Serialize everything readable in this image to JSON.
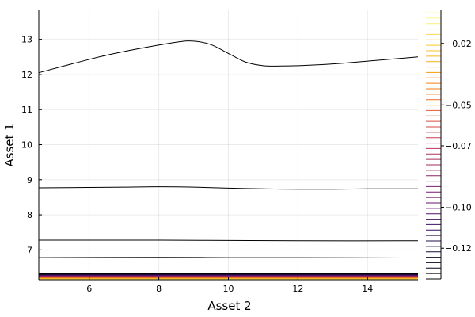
{
  "chart_data": {
    "type": "contour",
    "title": "",
    "xlabel": "Asset 2",
    "ylabel": "Asset 1",
    "xlim": [
      4.55,
      15.45
    ],
    "ylim": [
      6.15,
      13.85
    ],
    "x_ticks": [
      6,
      8,
      10,
      12,
      14
    ],
    "y_ticks": [
      7,
      8,
      9,
      10,
      11,
      12,
      13
    ],
    "grid": true,
    "legend": "none",
    "colorbar": {
      "colormap": "inferno",
      "ticks": [
        -0.02,
        -0.05,
        -0.07,
        -0.1,
        -0.12
      ],
      "tick_labels": [
        "−0.02",
        "−0.05",
        "−0.07",
        "−0.10",
        "−0.12"
      ],
      "range": [
        -0.135,
        -0.005
      ],
      "levels": 50
    },
    "contours": [
      {
        "color": "#000004",
        "points": [
          [
            4.55,
            12.05
          ],
          [
            5.5,
            12.3
          ],
          [
            6.5,
            12.55
          ],
          [
            7.5,
            12.75
          ],
          [
            8.5,
            12.92
          ],
          [
            9.0,
            12.95
          ],
          [
            9.5,
            12.85
          ],
          [
            10.0,
            12.6
          ],
          [
            10.5,
            12.35
          ],
          [
            11.0,
            12.25
          ],
          [
            11.5,
            12.24
          ],
          [
            12.0,
            12.25
          ],
          [
            13.0,
            12.3
          ],
          [
            14.0,
            12.38
          ],
          [
            15.45,
            12.5
          ]
        ]
      },
      {
        "color": "#000004",
        "points": [
          [
            4.55,
            8.77
          ],
          [
            6.0,
            8.78
          ],
          [
            7.0,
            8.79
          ],
          [
            8.0,
            8.8
          ],
          [
            9.0,
            8.79
          ],
          [
            10.0,
            8.76
          ],
          [
            11.0,
            8.74
          ],
          [
            12.0,
            8.73
          ],
          [
            13.0,
            8.73
          ],
          [
            14.0,
            8.74
          ],
          [
            15.45,
            8.74
          ]
        ]
      },
      {
        "color": "#000004",
        "points": [
          [
            4.55,
            7.28
          ],
          [
            8.0,
            7.28
          ],
          [
            10.0,
            7.27
          ],
          [
            12.0,
            7.26
          ],
          [
            15.45,
            7.26
          ]
        ]
      },
      {
        "color": "#000004",
        "points": [
          [
            4.55,
            6.78
          ],
          [
            8.0,
            6.79
          ],
          [
            10.0,
            6.78
          ],
          [
            12.0,
            6.78
          ],
          [
            15.45,
            6.77
          ]
        ]
      }
    ],
    "bottom_band_levels": 12
  }
}
